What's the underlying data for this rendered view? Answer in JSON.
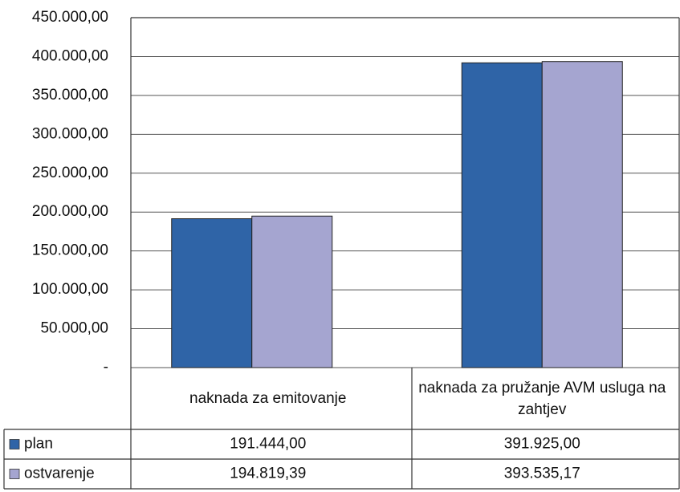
{
  "chart_data": {
    "type": "bar",
    "categories": [
      "naknada za emitovanje",
      "naknada za pružanje AVM usluga na zahtjev"
    ],
    "series": [
      {
        "name": "plan",
        "color": "#2f64a7",
        "values": [
          191444.0,
          391925.0
        ],
        "value_labels": [
          "191.444,00",
          "391.925,00"
        ]
      },
      {
        "name": "ostvarenje",
        "color": "#a5a5d0",
        "values": [
          194819.39,
          393535.17
        ],
        "value_labels": [
          "194.819,39",
          "393.535,17"
        ]
      }
    ],
    "ylim": [
      0,
      450000
    ],
    "yticks": [
      {
        "value": 0,
        "label": "-"
      },
      {
        "value": 50000,
        "label": "50.000,00"
      },
      {
        "value": 100000,
        "label": "100.000,00"
      },
      {
        "value": 150000,
        "label": "150.000,00"
      },
      {
        "value": 200000,
        "label": "200.000,00"
      },
      {
        "value": 250000,
        "label": "250.000,00"
      },
      {
        "value": 300000,
        "label": "300.000,00"
      },
      {
        "value": 350000,
        "label": "350.000,00"
      },
      {
        "value": 400000,
        "label": "400.000,00"
      },
      {
        "value": 450000,
        "label": "450.000,00"
      }
    ],
    "grid": true
  }
}
